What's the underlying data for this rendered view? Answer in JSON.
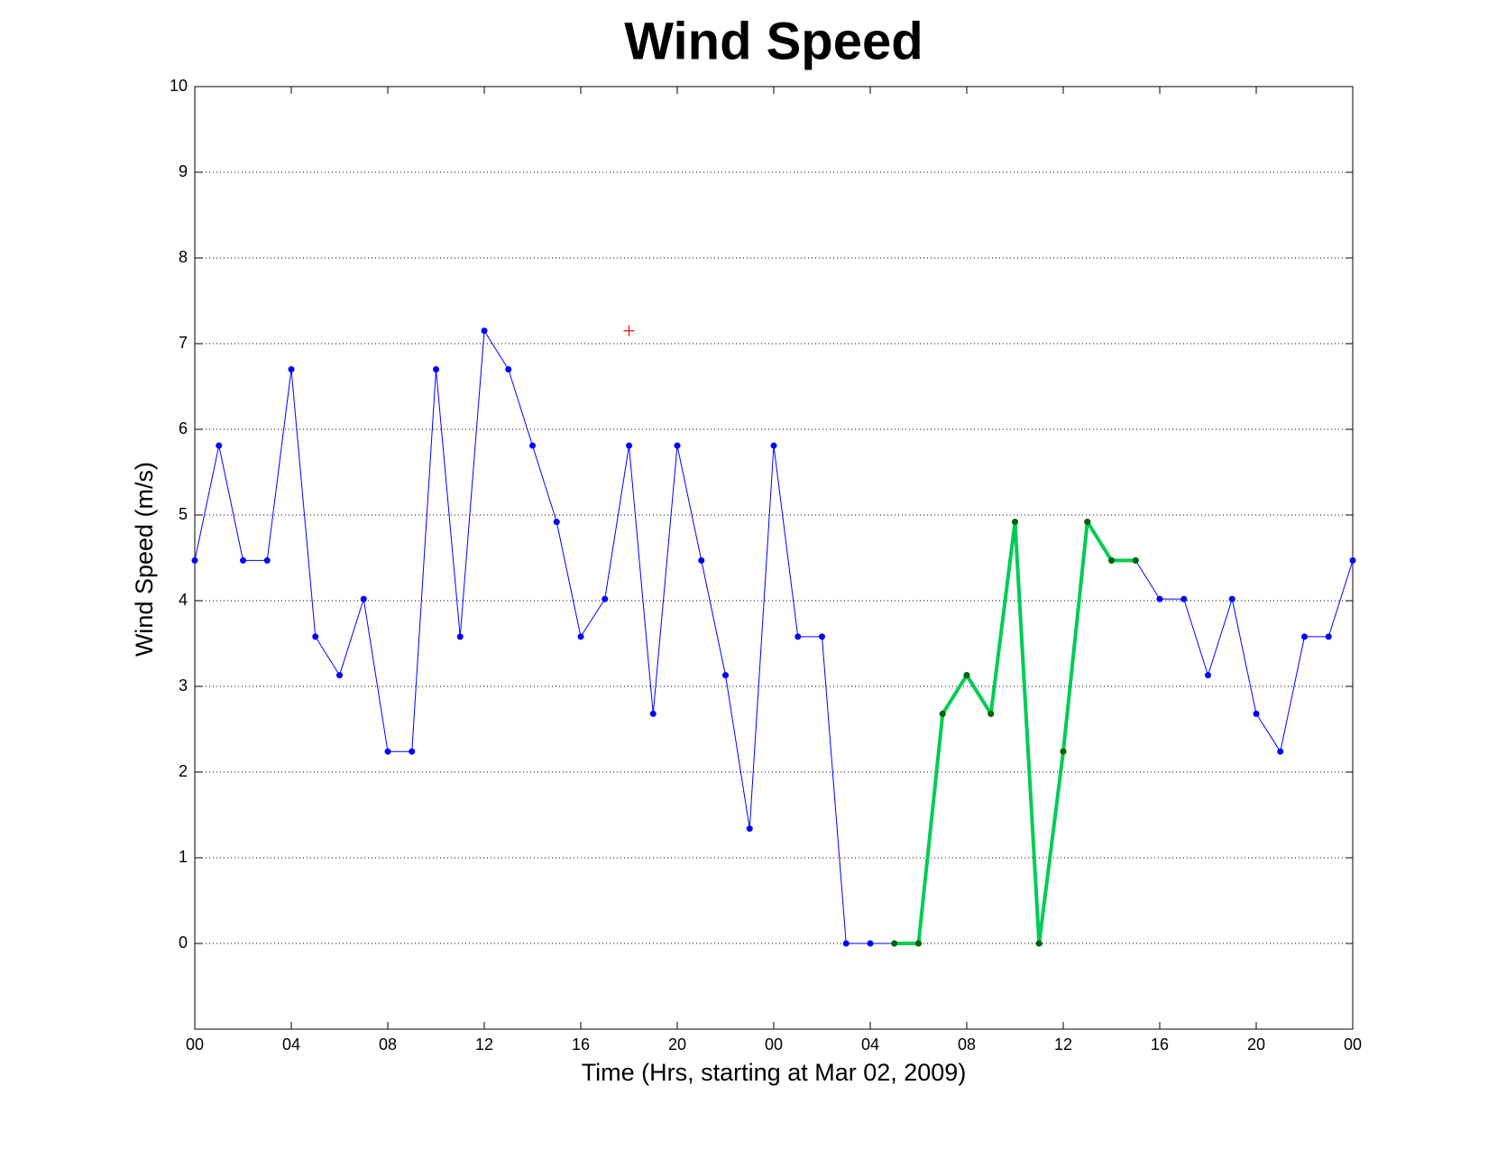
{
  "chart_data": {
    "type": "line",
    "title": "Wind Speed",
    "x_label": "Time (Hrs, starting at Mar 02, 2009)",
    "y_label": "Wind Speed (m/s)",
    "x": [
      0,
      1,
      2,
      3,
      4,
      5,
      6,
      7,
      8,
      9,
      10,
      11,
      12,
      13,
      14,
      15,
      16,
      17,
      18,
      19,
      20,
      21,
      22,
      23,
      24,
      25,
      26,
      27,
      28,
      29,
      30,
      31,
      32,
      33,
      34,
      35,
      36,
      37,
      38,
      39,
      40,
      41,
      42,
      43,
      44,
      45,
      46,
      47,
      48
    ],
    "series": [
      {
        "color": "#0000ff",
        "line_width": 1,
        "marker": "dot",
        "values": [
          4.47,
          5.81,
          4.47,
          4.47,
          6.7,
          3.58,
          3.13,
          4.02,
          2.24,
          2.24,
          6.7,
          3.58,
          7.15,
          6.7,
          5.81,
          4.92,
          3.58,
          4.02,
          5.81,
          2.68,
          5.81,
          4.47,
          3.13,
          1.34,
          5.81,
          3.58,
          3.58,
          0,
          0,
          0,
          0,
          2.68,
          3.13,
          2.68,
          4.92,
          0,
          2.24,
          4.92,
          4.47,
          4.47,
          4.02,
          4.02,
          3.13,
          4.02,
          2.68,
          2.24,
          3.58,
          3.58,
          4.47
        ]
      },
      {
        "color": "#00cc55",
        "line_width": 4,
        "marker": "dot",
        "marker_color": "#006600",
        "x": [
          29,
          30,
          31,
          32,
          33,
          34,
          35,
          36,
          37,
          38,
          39
        ],
        "values": [
          0,
          0,
          2.68,
          3.13,
          2.68,
          4.92,
          0,
          2.24,
          4.92,
          4.47,
          4.47
        ]
      },
      {
        "color": "#ff0000",
        "line_width": 0,
        "marker": "plus",
        "x": [
          18
        ],
        "values": [
          7.15
        ]
      }
    ],
    "xlim": [
      0,
      48
    ],
    "xticks": [
      {
        "value": 0,
        "label": "00"
      },
      {
        "value": 4,
        "label": "04"
      },
      {
        "value": 8,
        "label": "08"
      },
      {
        "value": 12,
        "label": "12"
      },
      {
        "value": 16,
        "label": "16"
      },
      {
        "value": 20,
        "label": "20"
      },
      {
        "value": 24,
        "label": "00"
      },
      {
        "value": 28,
        "label": "04"
      },
      {
        "value": 32,
        "label": "08"
      },
      {
        "value": 36,
        "label": "12"
      },
      {
        "value": 40,
        "label": "16"
      },
      {
        "value": 44,
        "label": "20"
      },
      {
        "value": 48,
        "label": "00"
      }
    ],
    "ylim": [
      -1,
      10
    ],
    "yticks": [
      0,
      1,
      2,
      3,
      4,
      5,
      6,
      7,
      8,
      9,
      10
    ],
    "grid": true
  }
}
